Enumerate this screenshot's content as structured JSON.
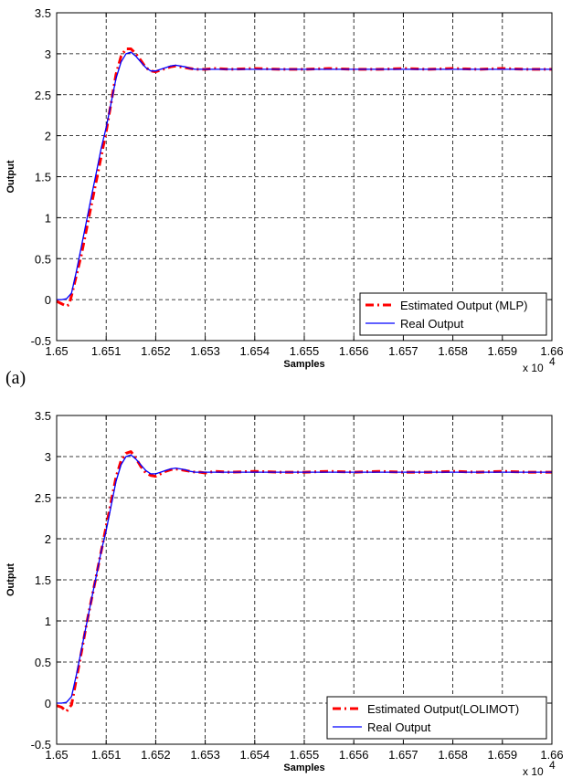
{
  "panel_labels": [
    "(a)"
  ],
  "chart_data": [
    {
      "type": "line",
      "xlabel": "Samples",
      "ylabel": "Output",
      "x_exponent_base": "x 10",
      "x_exponent_power": "4",
      "xlim": [
        1.65,
        1.66
      ],
      "ylim": [
        -0.5,
        3.5
      ],
      "xticks": [
        "1.65",
        "1.651",
        "1.652",
        "1.653",
        "1.654",
        "1.655",
        "1.656",
        "1.657",
        "1.658",
        "1.659",
        "1.66"
      ],
      "yticks": [
        "-0.5",
        "0",
        "0.5",
        "1",
        "1.5",
        "2",
        "2.5",
        "3",
        "3.5"
      ],
      "grid": true,
      "legend_position": "bottom-right",
      "series": [
        {
          "name": "Estimated Output (MLP)",
          "color": "#ff0000",
          "style": "dash-dot",
          "x": [
            1.65,
            1.6501,
            1.6502,
            1.65025,
            1.6503,
            1.6504,
            1.6505,
            1.6506,
            1.6507,
            1.6508,
            1.6509,
            1.651,
            1.6511,
            1.6512,
            1.6513,
            1.6514,
            1.6515,
            1.6516,
            1.6517,
            1.6518,
            1.6519,
            1.652,
            1.6521,
            1.6522,
            1.6523,
            1.6524,
            1.6525,
            1.6526,
            1.6527,
            1.6528,
            1.6529,
            1.653,
            1.6532,
            1.6535,
            1.654,
            1.6545,
            1.655,
            1.6555,
            1.656,
            1.6565,
            1.657,
            1.6575,
            1.658,
            1.6585,
            1.659,
            1.6595,
            1.66
          ],
          "y": [
            -0.02,
            -0.05,
            -0.08,
            -0.06,
            0.05,
            0.3,
            0.55,
            0.85,
            1.15,
            1.45,
            1.75,
            2.05,
            2.4,
            2.75,
            2.97,
            3.06,
            3.06,
            3.0,
            2.92,
            2.83,
            2.79,
            2.78,
            2.8,
            2.82,
            2.84,
            2.85,
            2.84,
            2.83,
            2.82,
            2.81,
            2.81,
            2.81,
            2.82,
            2.81,
            2.82,
            2.81,
            2.81,
            2.82,
            2.81,
            2.81,
            2.82,
            2.81,
            2.82,
            2.81,
            2.82,
            2.81,
            2.81
          ]
        },
        {
          "name": "Real Output",
          "color": "#0000ff",
          "style": "solid",
          "x": [
            1.65,
            1.6501,
            1.6502,
            1.6503,
            1.6504,
            1.6505,
            1.6506,
            1.6507,
            1.6508,
            1.6509,
            1.651,
            1.6511,
            1.6512,
            1.6513,
            1.6514,
            1.6515,
            1.6516,
            1.6517,
            1.6518,
            1.6519,
            1.652,
            1.6521,
            1.6522,
            1.6523,
            1.6524,
            1.6525,
            1.6526,
            1.6527,
            1.6528,
            1.6529,
            1.653,
            1.6532,
            1.6535,
            1.654,
            1.6545,
            1.655,
            1.6555,
            1.656,
            1.6565,
            1.657,
            1.6575,
            1.658,
            1.6585,
            1.659,
            1.6595,
            1.66
          ],
          "y": [
            0.0,
            0.0,
            0.01,
            0.08,
            0.35,
            0.65,
            0.95,
            1.25,
            1.55,
            1.85,
            2.1,
            2.4,
            2.7,
            2.9,
            3.0,
            3.02,
            2.97,
            2.9,
            2.83,
            2.79,
            2.79,
            2.81,
            2.83,
            2.85,
            2.86,
            2.85,
            2.84,
            2.82,
            2.81,
            2.81,
            2.81,
            2.81,
            2.81,
            2.81,
            2.81,
            2.81,
            2.81,
            2.81,
            2.81,
            2.81,
            2.81,
            2.81,
            2.81,
            2.81,
            2.81,
            2.81
          ]
        }
      ]
    },
    {
      "type": "line",
      "xlabel": "Samples",
      "ylabel": "Output",
      "x_exponent_base": "x 10",
      "x_exponent_power": "4",
      "xlim": [
        1.65,
        1.66
      ],
      "ylim": [
        -0.5,
        3.5
      ],
      "xticks": [
        "1.65",
        "1.651",
        "1.652",
        "1.653",
        "1.654",
        "1.655",
        "1.656",
        "1.657",
        "1.658",
        "1.659",
        "1.66"
      ],
      "yticks": [
        "-0.5",
        "0",
        "0.5",
        "1",
        "1.5",
        "2",
        "2.5",
        "3",
        "3.5"
      ],
      "grid": true,
      "legend_position": "bottom-right",
      "series": [
        {
          "name": "Estimated Output(LOLIMOT)",
          "color": "#ff0000",
          "style": "dash-dot",
          "x": [
            1.65,
            1.6501,
            1.6502,
            1.6503,
            1.6504,
            1.6505,
            1.6506,
            1.6507,
            1.6508,
            1.6509,
            1.651,
            1.6511,
            1.6512,
            1.6513,
            1.6514,
            1.6515,
            1.6516,
            1.6517,
            1.6518,
            1.6519,
            1.652,
            1.6521,
            1.6522,
            1.6523,
            1.6524,
            1.6525,
            1.6526,
            1.6527,
            1.6528,
            1.6529,
            1.653,
            1.6532,
            1.6535,
            1.654,
            1.6545,
            1.655,
            1.6555,
            1.656,
            1.6565,
            1.657,
            1.6575,
            1.658,
            1.6585,
            1.659,
            1.6595,
            1.66
          ],
          "y": [
            -0.03,
            -0.05,
            -0.1,
            -0.02,
            0.3,
            0.62,
            0.95,
            1.25,
            1.55,
            1.85,
            2.15,
            2.45,
            2.75,
            2.95,
            3.04,
            3.06,
            2.98,
            2.88,
            2.8,
            2.77,
            2.76,
            2.79,
            2.82,
            2.84,
            2.85,
            2.84,
            2.83,
            2.82,
            2.81,
            2.81,
            2.8,
            2.82,
            2.81,
            2.82,
            2.81,
            2.81,
            2.82,
            2.81,
            2.82,
            2.81,
            2.81,
            2.82,
            2.81,
            2.82,
            2.81,
            2.81
          ]
        },
        {
          "name": "Real Output",
          "color": "#0000ff",
          "style": "solid",
          "x": [
            1.65,
            1.6501,
            1.6502,
            1.6503,
            1.6504,
            1.6505,
            1.6506,
            1.6507,
            1.6508,
            1.6509,
            1.651,
            1.6511,
            1.6512,
            1.6513,
            1.6514,
            1.6515,
            1.6516,
            1.6517,
            1.6518,
            1.6519,
            1.652,
            1.6521,
            1.6522,
            1.6523,
            1.6524,
            1.6525,
            1.6526,
            1.6527,
            1.6528,
            1.6529,
            1.653,
            1.6532,
            1.6535,
            1.654,
            1.6545,
            1.655,
            1.6555,
            1.656,
            1.6565,
            1.657,
            1.6575,
            1.658,
            1.6585,
            1.659,
            1.6595,
            1.66
          ],
          "y": [
            0.0,
            0.0,
            0.01,
            0.08,
            0.35,
            0.65,
            0.95,
            1.25,
            1.55,
            1.85,
            2.1,
            2.4,
            2.7,
            2.9,
            3.0,
            3.02,
            2.97,
            2.9,
            2.83,
            2.79,
            2.79,
            2.81,
            2.83,
            2.85,
            2.86,
            2.85,
            2.84,
            2.82,
            2.81,
            2.81,
            2.81,
            2.81,
            2.81,
            2.81,
            2.81,
            2.81,
            2.81,
            2.81,
            2.81,
            2.81,
            2.81,
            2.81,
            2.81,
            2.81,
            2.81,
            2.81
          ]
        }
      ]
    }
  ]
}
